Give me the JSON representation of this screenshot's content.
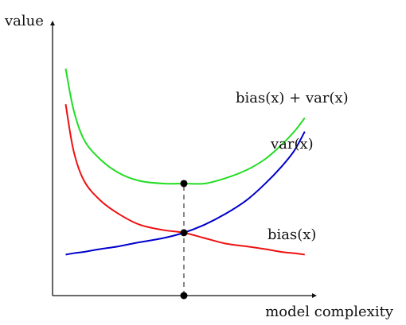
{
  "chart_data": {
    "type": "line",
    "xlabel": "model complexity",
    "ylabel": "value",
    "grid": false,
    "xlim": [
      0,
      1
    ],
    "ylim": [
      0,
      1
    ],
    "x": [
      0.05,
      0.08,
      0.12,
      0.18,
      0.25,
      0.33,
      0.42,
      0.5,
      0.58,
      0.66,
      0.74,
      0.81,
      0.87,
      0.92,
      0.96
    ],
    "series": [
      {
        "name": "bias(x) + var(x)",
        "color": "#22dd22",
        "values": [
          0.83,
          0.68,
          0.57,
          0.5,
          0.45,
          0.42,
          0.41,
          0.41,
          0.41,
          0.43,
          0.46,
          0.5,
          0.55,
          0.6,
          0.65
        ]
      },
      {
        "name": "var(x)",
        "color": "#0000cc",
        "values": [
          0.15,
          0.155,
          0.16,
          0.17,
          0.18,
          0.195,
          0.21,
          0.23,
          0.26,
          0.3,
          0.35,
          0.41,
          0.47,
          0.53,
          0.6
        ]
      },
      {
        "name": "bias(x)",
        "color": "#ee1111",
        "values": [
          0.7,
          0.53,
          0.42,
          0.35,
          0.3,
          0.26,
          0.24,
          0.23,
          0.21,
          0.19,
          0.18,
          0.17,
          0.16,
          0.155,
          0.15
        ]
      }
    ],
    "annotations": {
      "optimum_x": 0.5,
      "optimum_total": 0.41,
      "optimum_crossing": 0.23,
      "guide": "dashed vertical line from the x-axis to the minimum of bias(x) + var(x)"
    },
    "label_placement": {
      "bias(x) + var(x)": "upper-right, above the green curve",
      "var(x)": "right, above the blue curve end",
      "bias(x)": "right, between the red and blue curves"
    }
  }
}
